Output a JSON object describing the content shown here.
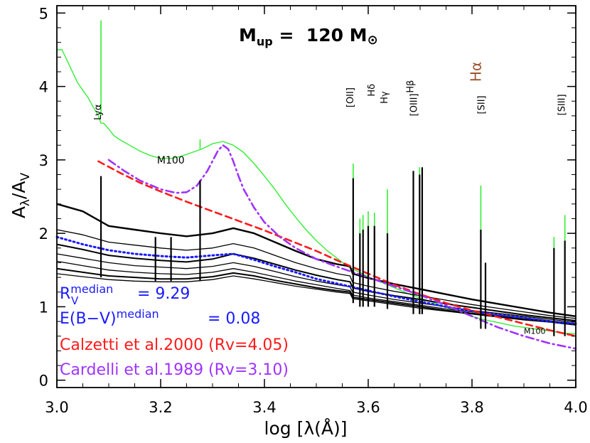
{
  "chart_data": {
    "type": "line",
    "title": "M_up = 120 M_⊙",
    "title_parts": {
      "base": "M",
      "sub": "up",
      "eq": " =  120 M",
      "sun": "⊙"
    },
    "xlabel": "log [λ(Å)]",
    "ylabel": "A_λ/A_V",
    "ylabel_parts": {
      "a": "A",
      "sub1": "λ",
      "slash": "/A",
      "sub2": "V"
    },
    "xlim": [
      3.0,
      4.0
    ],
    "ylim": [
      -0.1,
      5.1
    ],
    "xticks": [
      3.0,
      3.2,
      3.4,
      3.6,
      3.8,
      4.0
    ],
    "xtick_labels": [
      "3.0",
      "3.2",
      "3.4",
      "3.6",
      "3.8",
      "4.0"
    ],
    "yticks": [
      0,
      1,
      2,
      3,
      4,
      5
    ],
    "ytick_labels": [
      "0",
      "1",
      "2",
      "3",
      "4",
      "5"
    ],
    "grid": false,
    "line_labels": [
      {
        "text": "Lyα",
        "x": 3.085,
        "y": 3.65,
        "rotate": -90
      },
      {
        "text": "[OII]",
        "x": 3.571,
        "y": 3.85,
        "rotate": -90
      },
      {
        "text": "Hδ",
        "x": 3.612,
        "y": 3.95,
        "rotate": -90
      },
      {
        "text": "Hγ",
        "x": 3.637,
        "y": 3.85,
        "rotate": -90
      },
      {
        "text": "[OIII]",
        "x": 3.694,
        "y": 3.75,
        "rotate": -90
      },
      {
        "text": "Hβ",
        "x": 3.687,
        "y": 4.0,
        "rotate": -90
      },
      {
        "text": "[SII]",
        "x": 3.824,
        "y": 3.75,
        "rotate": -90
      },
      {
        "text": "[SIII]",
        "x": 3.979,
        "y": 3.75,
        "rotate": -90
      }
    ],
    "halpha_label": {
      "text": "Hα",
      "x": 3.817,
      "y": 4.2,
      "color": "#a0522d"
    },
    "curve_labels": [
      {
        "text": "M100",
        "x": 3.193,
        "y": 3.0
      },
      {
        "text": "M100",
        "x": 3.9,
        "y": 0.68
      }
    ],
    "series": [
      {
        "name": "M100",
        "color": "#33ee33",
        "width": 1.4,
        "dash": "",
        "x": [
          3.0,
          3.01,
          3.02,
          3.03,
          3.04,
          3.05,
          3.06,
          3.07,
          3.08,
          3.085,
          3.09,
          3.1,
          3.11,
          3.12,
          3.14,
          3.16,
          3.18,
          3.19,
          3.2,
          3.22,
          3.24,
          3.26,
          3.28,
          3.3,
          3.32,
          3.34,
          3.36,
          3.38,
          3.4,
          3.42,
          3.44,
          3.46,
          3.48,
          3.5,
          3.52,
          3.54,
          3.56,
          3.58,
          3.6,
          3.62,
          3.64,
          3.66,
          3.68,
          3.7,
          3.72,
          3.74,
          3.76,
          3.78,
          3.8,
          3.82,
          3.84,
          3.86,
          3.88,
          3.9,
          3.92,
          3.94,
          3.96,
          3.98,
          4.0
        ],
        "y": [
          4.5,
          4.5,
          4.35,
          4.2,
          4.05,
          3.95,
          3.85,
          3.72,
          3.6,
          3.5,
          3.5,
          3.42,
          3.33,
          3.28,
          3.2,
          3.12,
          3.06,
          3.04,
          3.02,
          3.02,
          3.05,
          3.1,
          3.15,
          3.22,
          3.25,
          3.2,
          3.1,
          2.95,
          2.78,
          2.6,
          2.4,
          2.22,
          2.05,
          1.9,
          1.77,
          1.66,
          1.55,
          1.48,
          1.41,
          1.35,
          1.29,
          1.23,
          1.17,
          1.12,
          1.07,
          1.02,
          0.97,
          0.92,
          0.87,
          0.83,
          0.8,
          0.77,
          0.74,
          0.72,
          0.7,
          0.68,
          0.66,
          0.64,
          0.63
        ]
      },
      {
        "name": "",
        "color": "#000000",
        "width": 2.4,
        "dash": "",
        "x": [
          3.0,
          3.05,
          3.1,
          3.15,
          3.2,
          3.25,
          3.3,
          3.34,
          3.38,
          3.42,
          3.46,
          3.5,
          3.54,
          3.565,
          3.57,
          3.6,
          3.65,
          3.7,
          3.75,
          3.8,
          3.85,
          3.9,
          3.95,
          4.0
        ],
        "y": [
          2.4,
          2.3,
          2.1,
          2.05,
          2.0,
          1.96,
          2.0,
          2.07,
          2.0,
          1.88,
          1.76,
          1.65,
          1.58,
          1.55,
          1.45,
          1.39,
          1.31,
          1.24,
          1.17,
          1.1,
          1.04,
          0.98,
          0.92,
          0.87
        ]
      },
      {
        "name": "",
        "color": "#000000",
        "width": 1.3,
        "dash": "",
        "x": [
          3.0,
          3.05,
          3.1,
          3.15,
          3.2,
          3.25,
          3.3,
          3.34,
          3.38,
          3.42,
          3.46,
          3.5,
          3.54,
          3.565,
          3.57,
          3.6,
          3.65,
          3.7,
          3.75,
          3.8,
          3.85,
          3.9,
          3.95,
          4.0
        ],
        "y": [
          2.05,
          1.98,
          1.88,
          1.84,
          1.8,
          1.77,
          1.8,
          1.86,
          1.8,
          1.7,
          1.6,
          1.52,
          1.45,
          1.42,
          1.33,
          1.28,
          1.21,
          1.15,
          1.09,
          1.03,
          0.98,
          0.93,
          0.88,
          0.84
        ]
      },
      {
        "name": "",
        "color": "#000000",
        "width": 2.0,
        "dash": "",
        "x": [
          3.0,
          3.05,
          3.1,
          3.15,
          3.2,
          3.25,
          3.3,
          3.34,
          3.38,
          3.42,
          3.46,
          3.5,
          3.54,
          3.565,
          3.57,
          3.6,
          3.65,
          3.7,
          3.75,
          3.8,
          3.85,
          3.9,
          3.95,
          4.0
        ],
        "y": [
          1.85,
          1.78,
          1.7,
          1.66,
          1.63,
          1.61,
          1.65,
          1.72,
          1.66,
          1.58,
          1.5,
          1.43,
          1.37,
          1.34,
          1.26,
          1.21,
          1.15,
          1.1,
          1.04,
          0.99,
          0.94,
          0.89,
          0.85,
          0.81
        ]
      },
      {
        "name": "",
        "color": "#000000",
        "width": 1.3,
        "dash": "",
        "x": [
          3.0,
          3.05,
          3.1,
          3.15,
          3.2,
          3.25,
          3.3,
          3.34,
          3.38,
          3.42,
          3.46,
          3.5,
          3.54,
          3.565,
          3.57,
          3.6,
          3.65,
          3.7,
          3.75,
          3.8,
          3.85,
          3.9,
          3.95,
          4.0
        ],
        "y": [
          1.72,
          1.66,
          1.6,
          1.56,
          1.54,
          1.52,
          1.55,
          1.6,
          1.55,
          1.48,
          1.41,
          1.35,
          1.3,
          1.27,
          1.2,
          1.16,
          1.1,
          1.05,
          1.0,
          0.95,
          0.91,
          0.87,
          0.83,
          0.79
        ]
      },
      {
        "name": "",
        "color": "#000000",
        "width": 1.3,
        "dash": "",
        "x": [
          3.0,
          3.05,
          3.1,
          3.15,
          3.2,
          3.25,
          3.3,
          3.34,
          3.38,
          3.42,
          3.46,
          3.5,
          3.54,
          3.565,
          3.57,
          3.6,
          3.65,
          3.7,
          3.75,
          3.8,
          3.85,
          3.9,
          3.95,
          4.0
        ],
        "y": [
          1.62,
          1.56,
          1.5,
          1.47,
          1.45,
          1.44,
          1.47,
          1.52,
          1.47,
          1.41,
          1.35,
          1.3,
          1.25,
          1.22,
          1.16,
          1.12,
          1.07,
          1.02,
          0.97,
          0.93,
          0.89,
          0.85,
          0.81,
          0.77
        ]
      },
      {
        "name": "",
        "color": "#000000",
        "width": 2.0,
        "dash": "",
        "x": [
          3.0,
          3.05,
          3.1,
          3.15,
          3.2,
          3.25,
          3.3,
          3.34,
          3.38,
          3.42,
          3.46,
          3.5,
          3.54,
          3.565,
          3.57,
          3.6,
          3.65,
          3.7,
          3.75,
          3.8,
          3.85,
          3.9,
          3.95,
          4.0
        ],
        "y": [
          1.52,
          1.47,
          1.42,
          1.4,
          1.38,
          1.38,
          1.41,
          1.46,
          1.42,
          1.36,
          1.31,
          1.26,
          1.22,
          1.2,
          1.13,
          1.1,
          1.05,
          1.0,
          0.95,
          0.91,
          0.87,
          0.83,
          0.8,
          0.76
        ]
      },
      {
        "name": "",
        "color": "#000000",
        "width": 1.3,
        "dash": "",
        "x": [
          3.0,
          3.05,
          3.1,
          3.15,
          3.2,
          3.25,
          3.3,
          3.34,
          3.38,
          3.42,
          3.46,
          3.5,
          3.54,
          3.565,
          3.57,
          3.6,
          3.65,
          3.7,
          3.75,
          3.8,
          3.85,
          3.9,
          3.95,
          4.0
        ],
        "y": [
          1.45,
          1.41,
          1.37,
          1.35,
          1.34,
          1.34,
          1.37,
          1.42,
          1.38,
          1.33,
          1.28,
          1.24,
          1.2,
          1.18,
          1.11,
          1.08,
          1.03,
          0.98,
          0.94,
          0.9,
          0.86,
          0.82,
          0.79,
          0.75
        ]
      },
      {
        "name": "",
        "color": "#1a1aff",
        "width": 3.0,
        "dash": "2 4",
        "x": [
          3.0,
          3.05,
          3.1,
          3.15,
          3.2,
          3.25,
          3.3,
          3.34,
          3.38,
          3.42,
          3.46,
          3.5,
          3.55,
          3.6,
          3.65,
          3.7,
          3.75,
          3.8,
          3.85,
          3.9,
          3.95,
          4.0
        ],
        "y": [
          1.95,
          1.85,
          1.77,
          1.72,
          1.69,
          1.67,
          1.7,
          1.72,
          1.64,
          1.55,
          1.47,
          1.38,
          1.3,
          1.22,
          1.14,
          1.07,
          1.0,
          0.94,
          0.89,
          0.85,
          0.8,
          0.77
        ]
      },
      {
        "name": "",
        "color": "#ff1a1a",
        "width": 2.6,
        "dash": "9 6",
        "x": [
          3.08,
          3.12,
          3.16,
          3.2,
          3.25,
          3.3,
          3.35,
          3.4,
          3.45,
          3.5,
          3.55,
          3.6,
          3.65,
          3.7,
          3.75,
          3.8,
          3.85,
          3.9,
          3.95,
          4.0
        ],
        "y": [
          2.98,
          2.83,
          2.69,
          2.57,
          2.43,
          2.3,
          2.17,
          2.04,
          1.9,
          1.76,
          1.6,
          1.45,
          1.3,
          1.17,
          1.05,
          0.95,
          0.86,
          0.77,
          0.68,
          0.6
        ]
      },
      {
        "name": "",
        "color": "#a033ff",
        "width": 2.6,
        "dash": "11 5 2 5",
        "x": [
          3.1,
          3.13,
          3.16,
          3.2,
          3.23,
          3.25,
          3.27,
          3.29,
          3.31,
          3.32,
          3.33,
          3.34,
          3.35,
          3.36,
          3.38,
          3.4,
          3.43,
          3.46,
          3.5,
          3.55,
          3.6,
          3.65,
          3.7,
          3.75,
          3.8,
          3.85,
          3.9,
          3.95,
          4.0
        ],
        "y": [
          3.0,
          2.85,
          2.72,
          2.6,
          2.55,
          2.56,
          2.65,
          2.85,
          3.12,
          3.2,
          3.15,
          2.98,
          2.78,
          2.6,
          2.35,
          2.15,
          1.95,
          1.8,
          1.65,
          1.52,
          1.4,
          1.28,
          1.16,
          1.02,
          0.87,
          0.72,
          0.6,
          0.5,
          0.43
        ]
      }
    ],
    "spikes": [
      {
        "x": 3.085,
        "y0": 3.6,
        "y1": 4.9,
        "color": "#33ee33"
      },
      {
        "x": 3.276,
        "y0": 3.15,
        "y1": 3.28,
        "color": "#33ee33"
      },
      {
        "x": 3.571,
        "y0": 1.5,
        "y1": 2.95,
        "color": "#33ee33"
      },
      {
        "x": 3.584,
        "y0": 1.45,
        "y1": 2.2,
        "color": "#33ee33"
      },
      {
        "x": 3.59,
        "y0": 1.45,
        "y1": 2.25,
        "color": "#33ee33"
      },
      {
        "x": 3.6,
        "y0": 1.42,
        "y1": 2.3,
        "color": "#33ee33"
      },
      {
        "x": 3.612,
        "y0": 1.4,
        "y1": 2.28,
        "color": "#33ee33"
      },
      {
        "x": 3.637,
        "y0": 1.35,
        "y1": 2.6,
        "color": "#33ee33"
      },
      {
        "x": 3.687,
        "y0": 1.2,
        "y1": 2.85,
        "color": "#33ee33"
      },
      {
        "x": 3.699,
        "y0": 1.18,
        "y1": 2.9,
        "color": "#33ee33"
      },
      {
        "x": 3.817,
        "y0": 0.83,
        "y1": 2.65,
        "color": "#33ee33"
      },
      {
        "x": 3.958,
        "y0": 0.66,
        "y1": 1.95,
        "color": "#33ee33"
      },
      {
        "x": 3.979,
        "y0": 0.64,
        "y1": 2.25,
        "color": "#33ee33"
      },
      {
        "x": 3.085,
        "y0": 1.4,
        "y1": 2.78,
        "color": "#000000"
      },
      {
        "x": 3.19,
        "y0": 1.35,
        "y1": 1.95,
        "color": "#000000"
      },
      {
        "x": 3.22,
        "y0": 1.35,
        "y1": 1.95,
        "color": "#000000"
      },
      {
        "x": 3.276,
        "y0": 1.35,
        "y1": 2.72,
        "color": "#000000"
      },
      {
        "x": 3.571,
        "y0": 1.05,
        "y1": 2.75,
        "color": "#000000"
      },
      {
        "x": 3.584,
        "y0": 1.0,
        "y1": 2.0,
        "color": "#000000"
      },
      {
        "x": 3.59,
        "y0": 1.0,
        "y1": 2.05,
        "color": "#000000"
      },
      {
        "x": 3.6,
        "y0": 1.0,
        "y1": 2.1,
        "color": "#000000"
      },
      {
        "x": 3.612,
        "y0": 1.0,
        "y1": 2.1,
        "color": "#000000"
      },
      {
        "x": 3.637,
        "y0": 0.97,
        "y1": 2.0,
        "color": "#000000"
      },
      {
        "x": 3.687,
        "y0": 0.9,
        "y1": 2.85,
        "color": "#000000"
      },
      {
        "x": 3.699,
        "y0": 0.9,
        "y1": 2.8,
        "color": "#000000"
      },
      {
        "x": 3.704,
        "y0": 0.9,
        "y1": 2.9,
        "color": "#000000"
      },
      {
        "x": 3.817,
        "y0": 0.7,
        "y1": 2.05,
        "color": "#000000"
      },
      {
        "x": 3.826,
        "y0": 0.7,
        "y1": 1.6,
        "color": "#000000"
      },
      {
        "x": 3.958,
        "y0": 0.6,
        "y1": 1.8,
        "color": "#000000"
      },
      {
        "x": 3.979,
        "y0": 0.6,
        "y1": 1.9,
        "color": "#000000"
      }
    ],
    "annotations": [
      {
        "text": "R",
        "sub": "V",
        "sup": "median",
        "value": "= 9.29",
        "color": "#1a1aff"
      },
      {
        "text": "E(B−V)",
        "sup": "median",
        "value": "= 0.08",
        "color": "#1a1aff"
      },
      {
        "text": "Calzetti et al.2000 (Rv=4.05)",
        "color": "#ff1a1a"
      },
      {
        "text": "Cardelli et al.1989 (Rv=3.10)",
        "color": "#a033ff"
      }
    ]
  }
}
